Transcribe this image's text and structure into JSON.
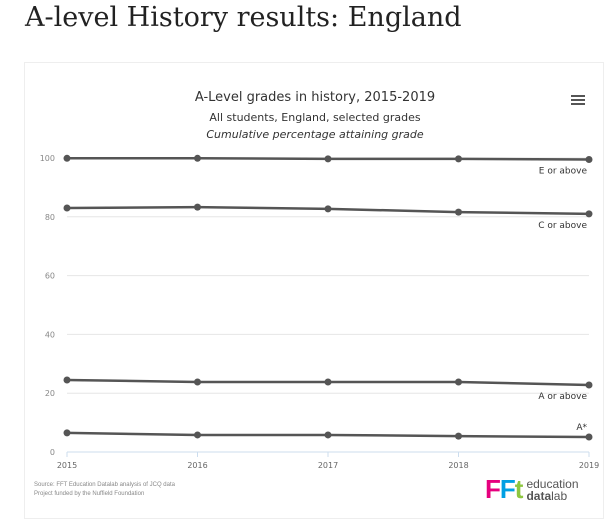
{
  "page": {
    "heading": "A-level History results: England"
  },
  "source": {
    "line1": "Source: FFT Education Datalab analysis of JCQ data",
    "line2": "Project funded by the Nuffield Foundation"
  },
  "logo": {
    "mark": "FFt",
    "word1": "education",
    "word2_a": "data",
    "word2_b": "lab"
  },
  "menu_icon": "hamburger-menu-icon",
  "colors": {
    "line": "#555555",
    "grid": "#e6e6e6",
    "logo_pink": "#e6007e",
    "logo_green": "#8dc63f",
    "logo_blue": "#00a0e3"
  },
  "chart_data": {
    "type": "line",
    "title": "A-Level grades in history, 2015-2019",
    "subtitle": "All students, England, selected grades",
    "subtitle2": "Cumulative percentage attaining grade",
    "xlabel": "",
    "ylabel": "",
    "x": [
      "2015",
      "2016",
      "2017",
      "2018",
      "2019"
    ],
    "ylim": [
      0,
      100
    ],
    "yticks": [
      "0",
      "20",
      "40",
      "60",
      "80",
      "100"
    ],
    "grid": true,
    "series": [
      {
        "name": "E or above",
        "values": [
          99.9,
          99.9,
          99.7,
          99.7,
          99.5
        ]
      },
      {
        "name": "C or above",
        "values": [
          83.0,
          83.3,
          82.7,
          81.6,
          81.0
        ]
      },
      {
        "name": "A or above",
        "values": [
          24.5,
          23.8,
          23.8,
          23.8,
          22.8
        ]
      },
      {
        "name": "A*",
        "values": [
          6.5,
          5.8,
          5.8,
          5.4,
          5.1
        ]
      }
    ]
  }
}
